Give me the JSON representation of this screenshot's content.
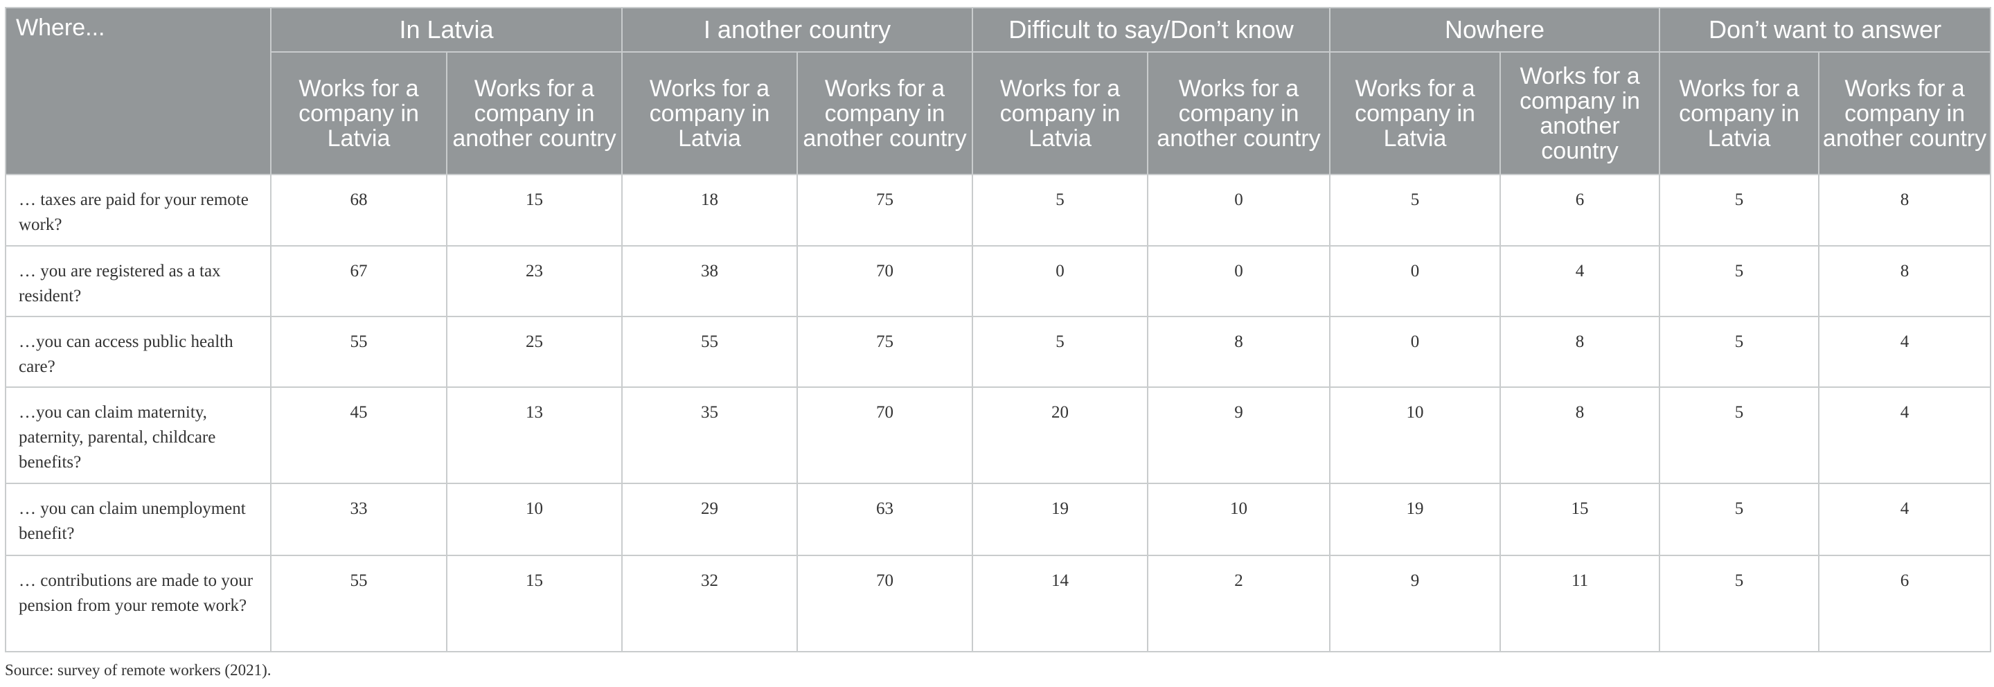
{
  "table": {
    "corner": "Where...",
    "groups": [
      "In Latvia",
      "I another country",
      "Difficult to say/Don’t know",
      "Nowhere",
      "Don’t want to answer"
    ],
    "subheaders": {
      "latvia": "Works for a company in Latvia",
      "abroad": "Works for a company in another country"
    },
    "rows": [
      {
        "label": "… taxes are paid for your remote work?",
        "values": [
          "68",
          "15",
          "18",
          "75",
          "5",
          "0",
          "5",
          "6",
          "5",
          "8"
        ]
      },
      {
        "label": "… you are registered as a tax resident?",
        "values": [
          "67",
          "23",
          "38",
          "70",
          "0",
          "0",
          "0",
          "4",
          "5",
          "8"
        ]
      },
      {
        "label": "…you can access public health care?",
        "values": [
          "55",
          "25",
          "55",
          "75",
          "5",
          "8",
          "0",
          "8",
          "5",
          "4"
        ]
      },
      {
        "label": "…you can claim maternity, paternity, parental, childcare benefits?",
        "values": [
          "45",
          "13",
          "35",
          "70",
          "20",
          "9",
          "10",
          "8",
          "5",
          "4"
        ]
      },
      {
        "label": "… you can claim unemployment benefit?",
        "values": [
          "33",
          "10",
          "29",
          "63",
          "19",
          "10",
          "19",
          "15",
          "5",
          "4"
        ]
      },
      {
        "label": "… contributions are made to your pension from your remote work?",
        "values": [
          "55",
          "15",
          "32",
          "70",
          "14",
          "2",
          "9",
          "11",
          "5",
          "6"
        ]
      }
    ]
  },
  "source": "Source: survey of remote workers (2021)."
}
